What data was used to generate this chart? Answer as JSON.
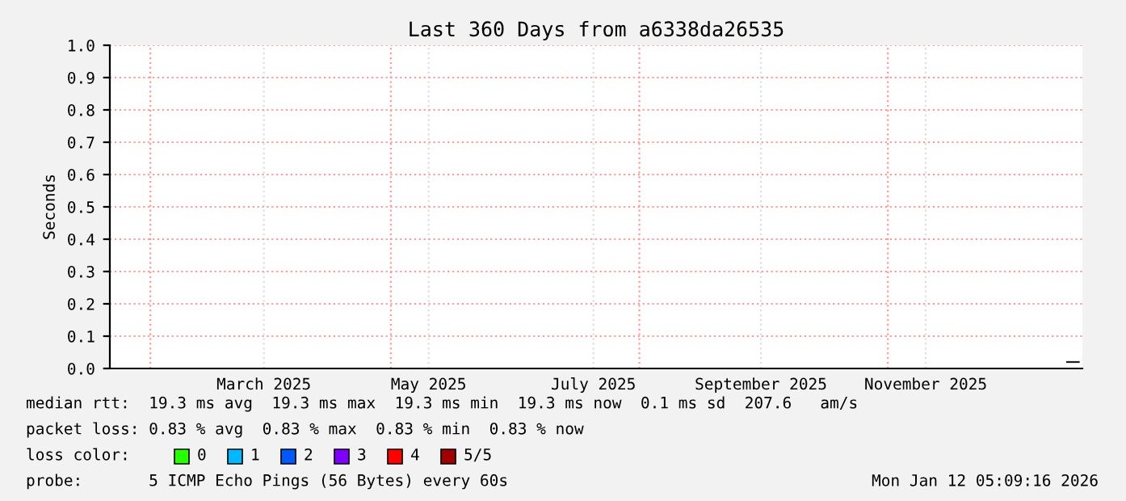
{
  "chart_data": {
    "type": "line",
    "title": "Last 360 Days from a6338da26535",
    "ylabel": "Seconds",
    "xlim": [
      "2025-01-17",
      "2026-01-12"
    ],
    "xticks": [
      {
        "value": "2025-02-01",
        "label": null
      },
      {
        "value": "2025-03-15",
        "label": "March 2025"
      },
      {
        "value": "2025-05-01",
        "label": null
      },
      {
        "value": "2025-05-15",
        "label": "May 2025"
      },
      {
        "value": "2025-07-15",
        "label": "July 2025"
      },
      {
        "value": "2025-08-01",
        "label": null
      },
      {
        "value": "2025-09-15",
        "label": "September 2025"
      },
      {
        "value": "2025-11-01",
        "label": null
      },
      {
        "value": "2025-11-15",
        "label": "November 2025"
      }
    ],
    "ylim": [
      0,
      1
    ],
    "yticks": [
      {
        "value": 0,
        "label": "0.0"
      },
      {
        "value": 0.1,
        "label": "0.1"
      },
      {
        "value": 0.2,
        "label": "0.2"
      },
      {
        "value": 0.3,
        "label": "0.3"
      },
      {
        "value": 0.4,
        "label": "0.4"
      },
      {
        "value": 0.5,
        "label": "0.5"
      },
      {
        "value": 0.6,
        "label": "0.6"
      },
      {
        "value": 0.7,
        "label": "0.7"
      },
      {
        "value": 0.8,
        "label": "0.8"
      },
      {
        "value": 0.9,
        "label": "0.9"
      },
      {
        "value": 1,
        "label": "1.0"
      }
    ],
    "grid": true,
    "legend": "bottom",
    "legend_title": "loss color:",
    "series": [
      {
        "color": "#202020",
        "x": [
          "2026-01-06",
          "2026-01-11"
        ],
        "values": [
          0.02,
          0.02
        ]
      },
      {
        "name": "0",
        "color": "#26ff00"
      },
      {
        "name": "1",
        "color": "#00b8ff"
      },
      {
        "name": "2",
        "color": "#0059ff"
      },
      {
        "name": "3",
        "color": "#7e00ff"
      },
      {
        "name": "4",
        "color": "#ff0000"
      },
      {
        "name": "5/5",
        "color": "#a10000"
      }
    ],
    "annotations": [
      "median rtt:  19.3 ms avg  19.3 ms max  19.3 ms min  19.3 ms now  0.1 ms sd  207.6   am/s",
      "packet loss: 0.83 % avg  0.83 % max  0.83 % min  0.83 % now",
      "probe:       5 ICMP Echo Pings (56 Bytes) every 60s",
      "Mon Jan 12 05:09:16 2026"
    ]
  }
}
